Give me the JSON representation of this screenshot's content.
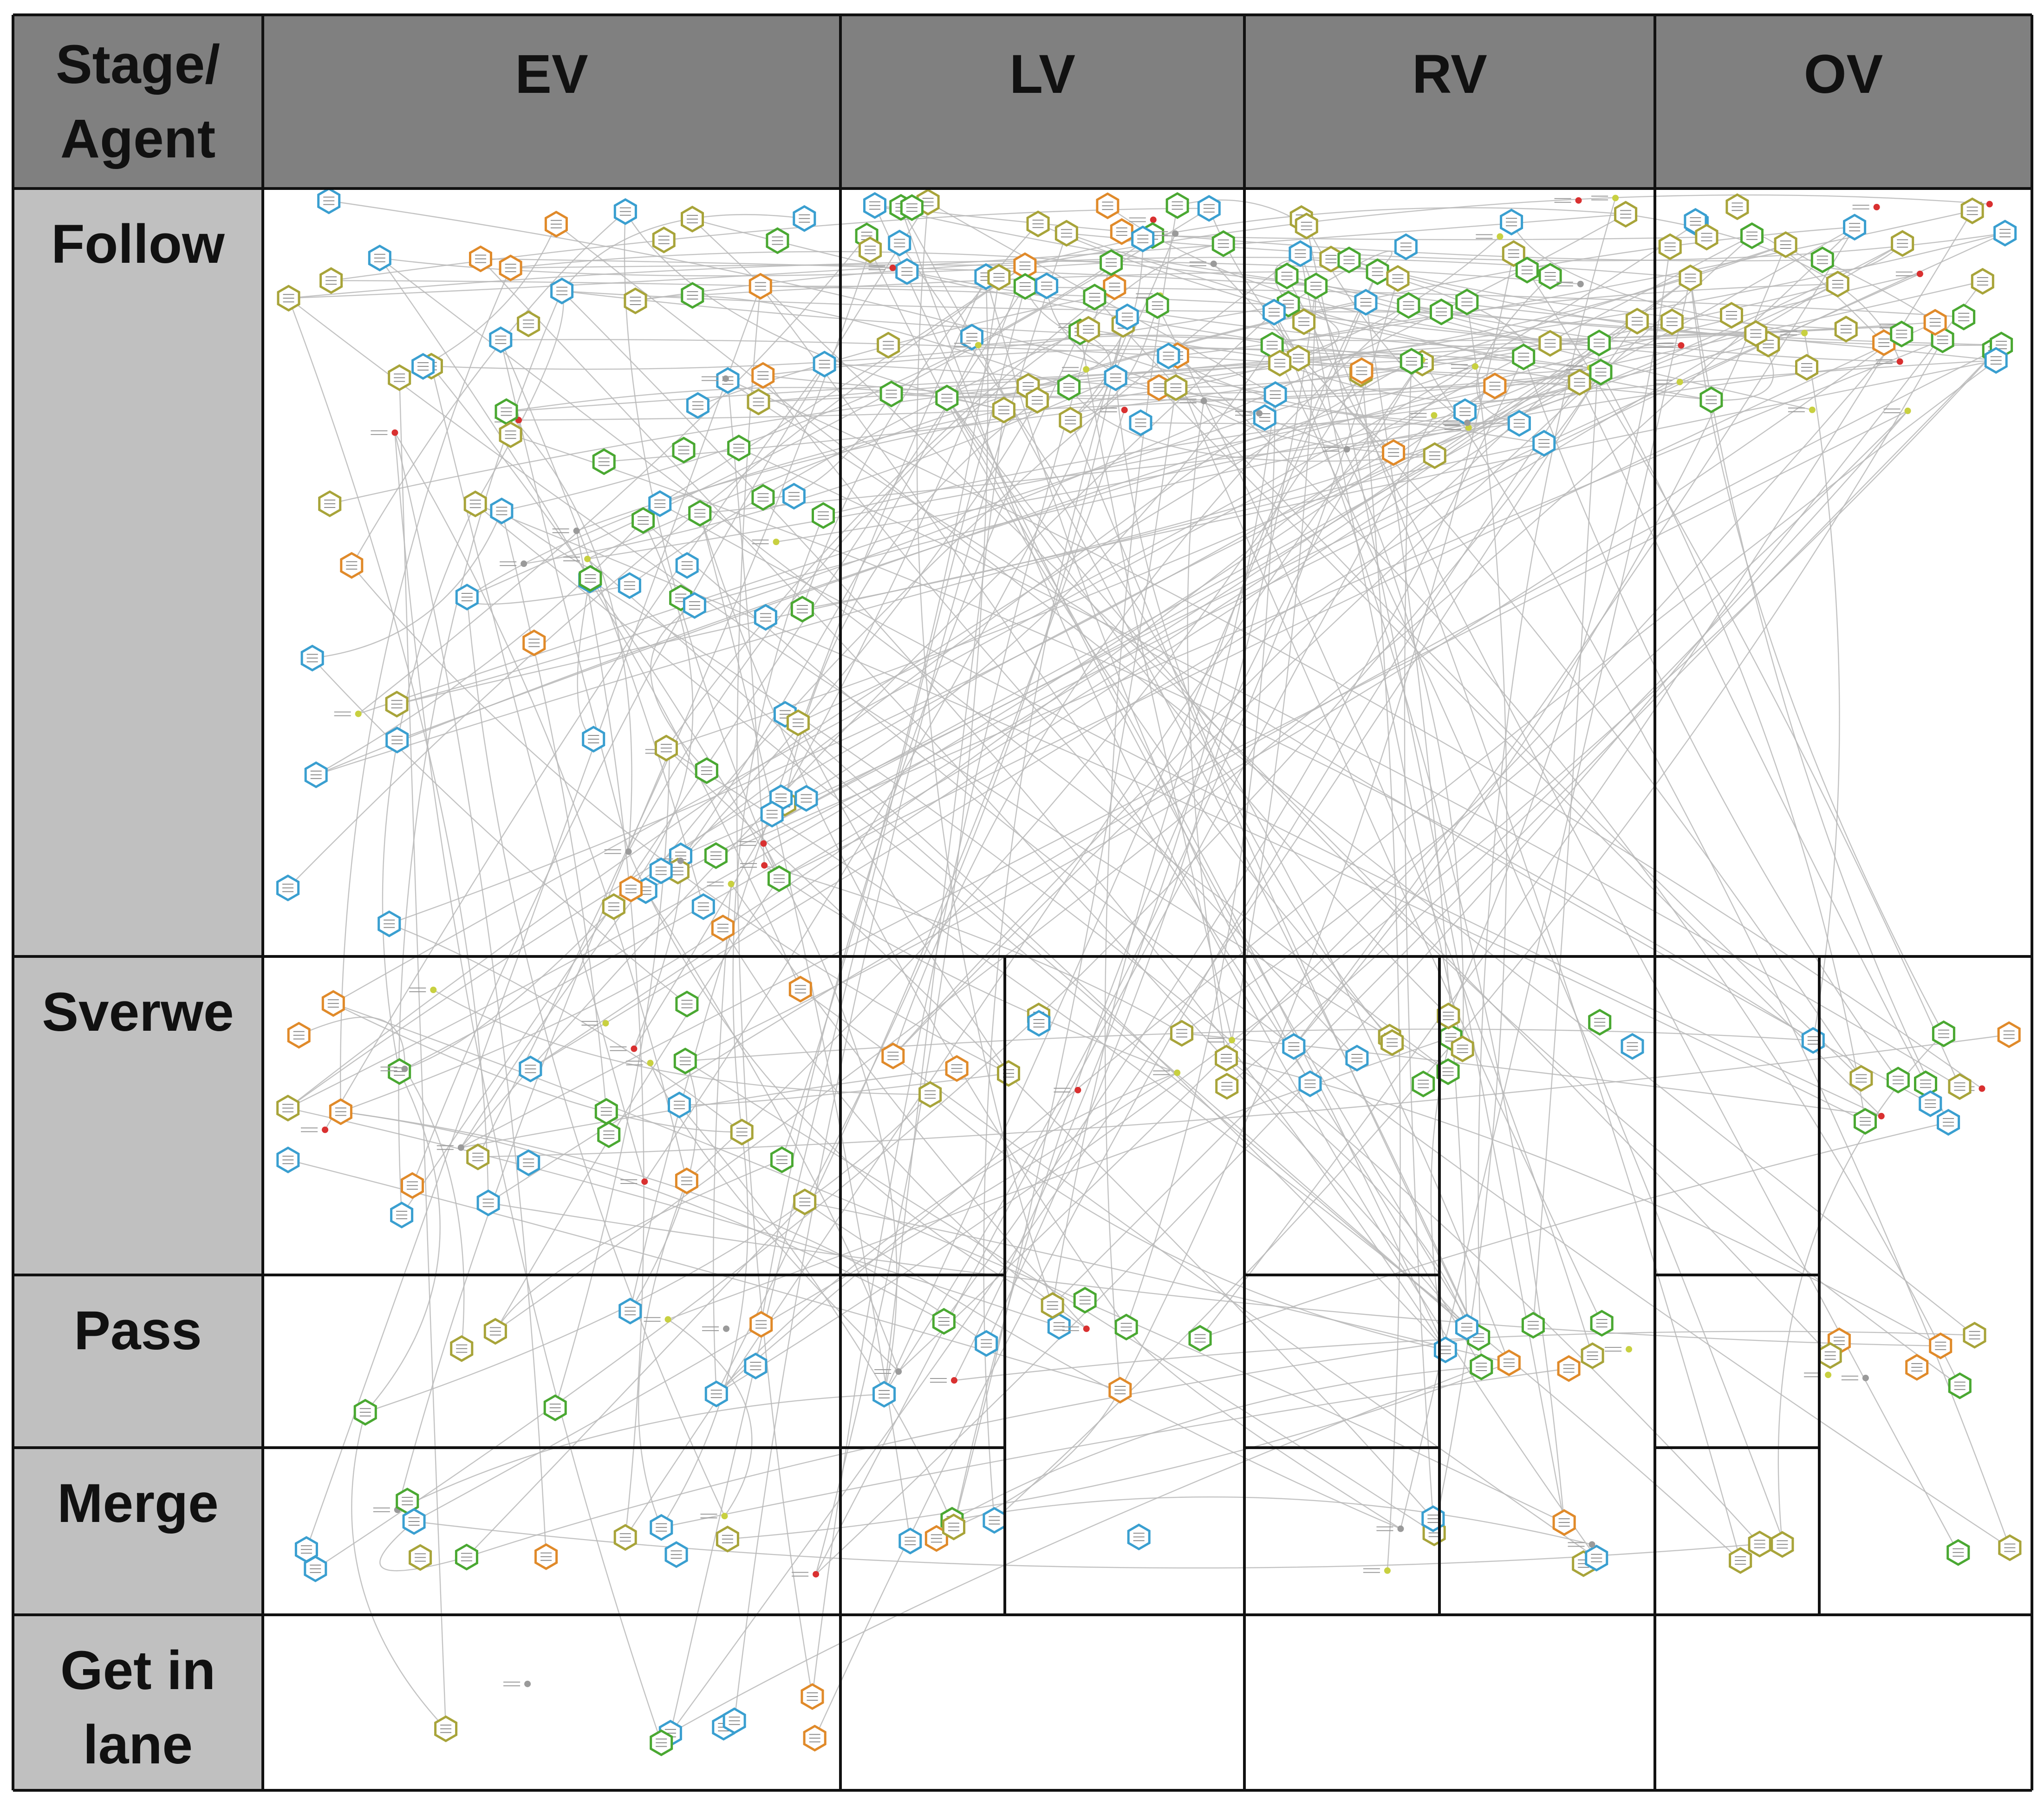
{
  "corner_label": "Stage/\nAgent",
  "columns": [
    {
      "id": "ev",
      "label": "EV"
    },
    {
      "id": "lv",
      "label": "LV"
    },
    {
      "id": "rv",
      "label": "RV"
    },
    {
      "id": "ov",
      "label": "OV"
    }
  ],
  "rows": [
    {
      "id": "follow",
      "label": "Follow"
    },
    {
      "id": "sverwe",
      "label": "Sverwe"
    },
    {
      "id": "pass",
      "label": "Pass"
    },
    {
      "id": "merge",
      "label": "Merge"
    },
    {
      "id": "get-in-lane",
      "label": "Get in\nlane"
    }
  ],
  "colors": {
    "header_dark": "#808080",
    "header_light": "#c0c0c0",
    "grid_line": "#111111",
    "edge": "#b8b8b8",
    "node_olive": "#a8a43a",
    "node_blue": "#3a9fd0",
    "node_green": "#4aa832",
    "node_orange": "#e08a2a",
    "dot_red": "#d93030",
    "dot_yellow": "#c8d040",
    "dot_gray": "#9a9a9a"
  }
}
